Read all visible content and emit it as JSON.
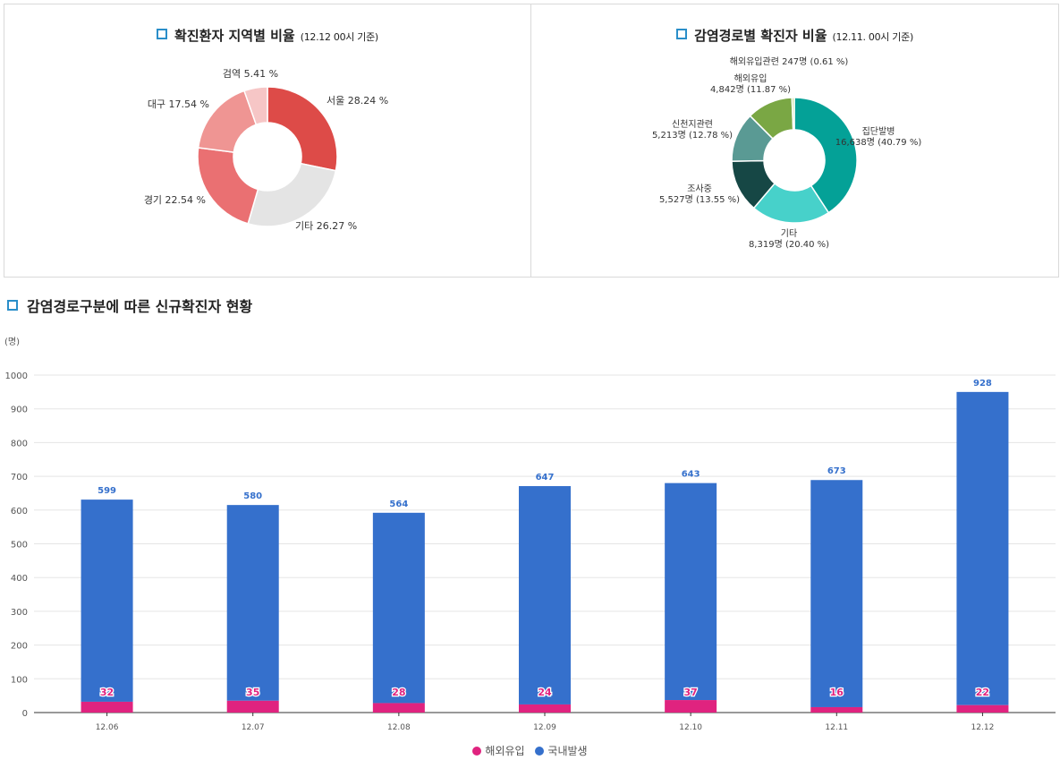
{
  "colors": {
    "title_marker": "#2a8ec9",
    "overseas": "#e0237f",
    "domestic": "#3570cc",
    "grid": "#e5e5e5",
    "axis_text": "#555555"
  },
  "chart_data": [
    {
      "type": "pie",
      "title": "확진환자 지역별 비율",
      "subtitle": "(12.12 00시 기준)",
      "donut": true,
      "slices": [
        {
          "label": "서울 28.24 %",
          "value": 28.24,
          "color": "#dd4b48"
        },
        {
          "label": "기타 26.27 %",
          "value": 26.27,
          "color": "#e4e4e4"
        },
        {
          "label": "경기 22.54 %",
          "value": 22.54,
          "color": "#ea7072"
        },
        {
          "label": "대구 17.54 %",
          "value": 17.54,
          "color": "#ef9593"
        },
        {
          "label": "검역 5.41 %",
          "value": 5.41,
          "color": "#f6c6c6"
        }
      ]
    },
    {
      "type": "pie",
      "title": "감염경로별 확진자 비율",
      "subtitle": "(12.11. 00시 기준)",
      "donut": true,
      "slices": [
        {
          "label": [
            "집단발병",
            "16,638명 (40.79 %)"
          ],
          "value": 40.79,
          "color": "#04a197"
        },
        {
          "label": [
            "기타",
            "8,319명 (20.40 %)"
          ],
          "value": 20.4,
          "color": "#47d1ca"
        },
        {
          "label": [
            "조사중",
            "5,527명 (13.55 %)"
          ],
          "value": 13.55,
          "color": "#164745"
        },
        {
          "label": [
            "신천지관련",
            "5,213명 (12.78 %)"
          ],
          "value": 12.78,
          "color": "#5a9a94"
        },
        {
          "label": [
            "해외유입",
            "4,842명 (11.87 %)"
          ],
          "value": 11.87,
          "color": "#7aa744"
        },
        {
          "label": [
            "해외유입관련 247명 (0.61 %)"
          ],
          "value": 0.61,
          "color": "#c9df97"
        }
      ]
    },
    {
      "type": "bar",
      "stacked": true,
      "title": "감염경로구분에 따른 신규확진자 현황",
      "ylabel": "(명)",
      "ylim": [
        0,
        1000
      ],
      "yticks": [
        0,
        100,
        200,
        300,
        400,
        500,
        600,
        700,
        800,
        900,
        1000
      ],
      "categories": [
        "12.06",
        "12.07",
        "12.08",
        "12.09",
        "12.10",
        "12.11",
        "12.12"
      ],
      "series": [
        {
          "name": "해외유입",
          "values": [
            32,
            35,
            28,
            24,
            37,
            16,
            22
          ],
          "color": "#e0237f"
        },
        {
          "name": "국내발생",
          "values": [
            599,
            580,
            564,
            647,
            643,
            673,
            928
          ],
          "color": "#3570cc"
        }
      ],
      "legend": "bottom"
    }
  ]
}
